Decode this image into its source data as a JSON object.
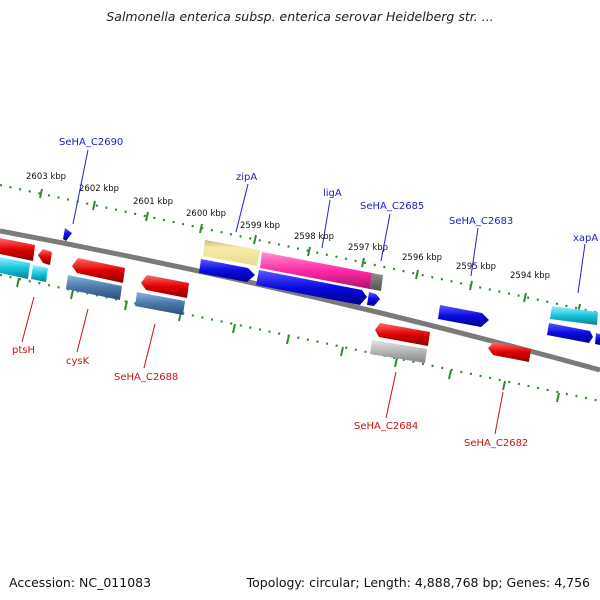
{
  "title": "Salmonella enterica subsp. enterica serovar Heidelberg str. ...",
  "accession": "Accession: NC_011083",
  "summary": "Topology: circular; Length: 4,888,768 bp; Genes: 4,756",
  "colors": {
    "backbone": "#7a7a7a",
    "ticks": "#2e8b2e",
    "forward_label": "#1a1acc",
    "reverse_label": "#cc1111",
    "label_line_forward": "#2222cc",
    "label_line_reverse": "#cc1111"
  },
  "tick_labels": [
    {
      "text": "2603 kbp",
      "kbp": 2603
    },
    {
      "text": "2602 kbp",
      "kbp": 2602
    },
    {
      "text": "2601 kbp",
      "kbp": 2601
    },
    {
      "text": "2600 kbp",
      "kbp": 2600
    },
    {
      "text": "2599 kbp",
      "kbp": 2599
    },
    {
      "text": "2598 kbp",
      "kbp": 2598
    },
    {
      "text": "2597 kbp",
      "kbp": 2597
    },
    {
      "text": "2596 kbp",
      "kbp": 2596
    },
    {
      "text": "2595 kbp",
      "kbp": 2595
    },
    {
      "text": "2594 kbp",
      "kbp": 2594
    }
  ],
  "gene_labels": [
    {
      "text": "SeHA_C2690",
      "strand": "forward"
    },
    {
      "text": "zipA",
      "strand": "forward"
    },
    {
      "text": "ligA",
      "strand": "forward"
    },
    {
      "text": "SeHA_C2685",
      "strand": "forward"
    },
    {
      "text": "SeHA_C2683",
      "strand": "forward"
    },
    {
      "text": "xapA",
      "strand": "forward"
    },
    {
      "text": "ptsH",
      "strand": "reverse"
    },
    {
      "text": "cysK",
      "strand": "reverse"
    },
    {
      "text": "SeHA_C2688",
      "strand": "reverse"
    },
    {
      "text": "SeHA_C2684",
      "strand": "reverse"
    },
    {
      "text": "SeHA_C2682",
      "strand": "reverse"
    }
  ]
}
